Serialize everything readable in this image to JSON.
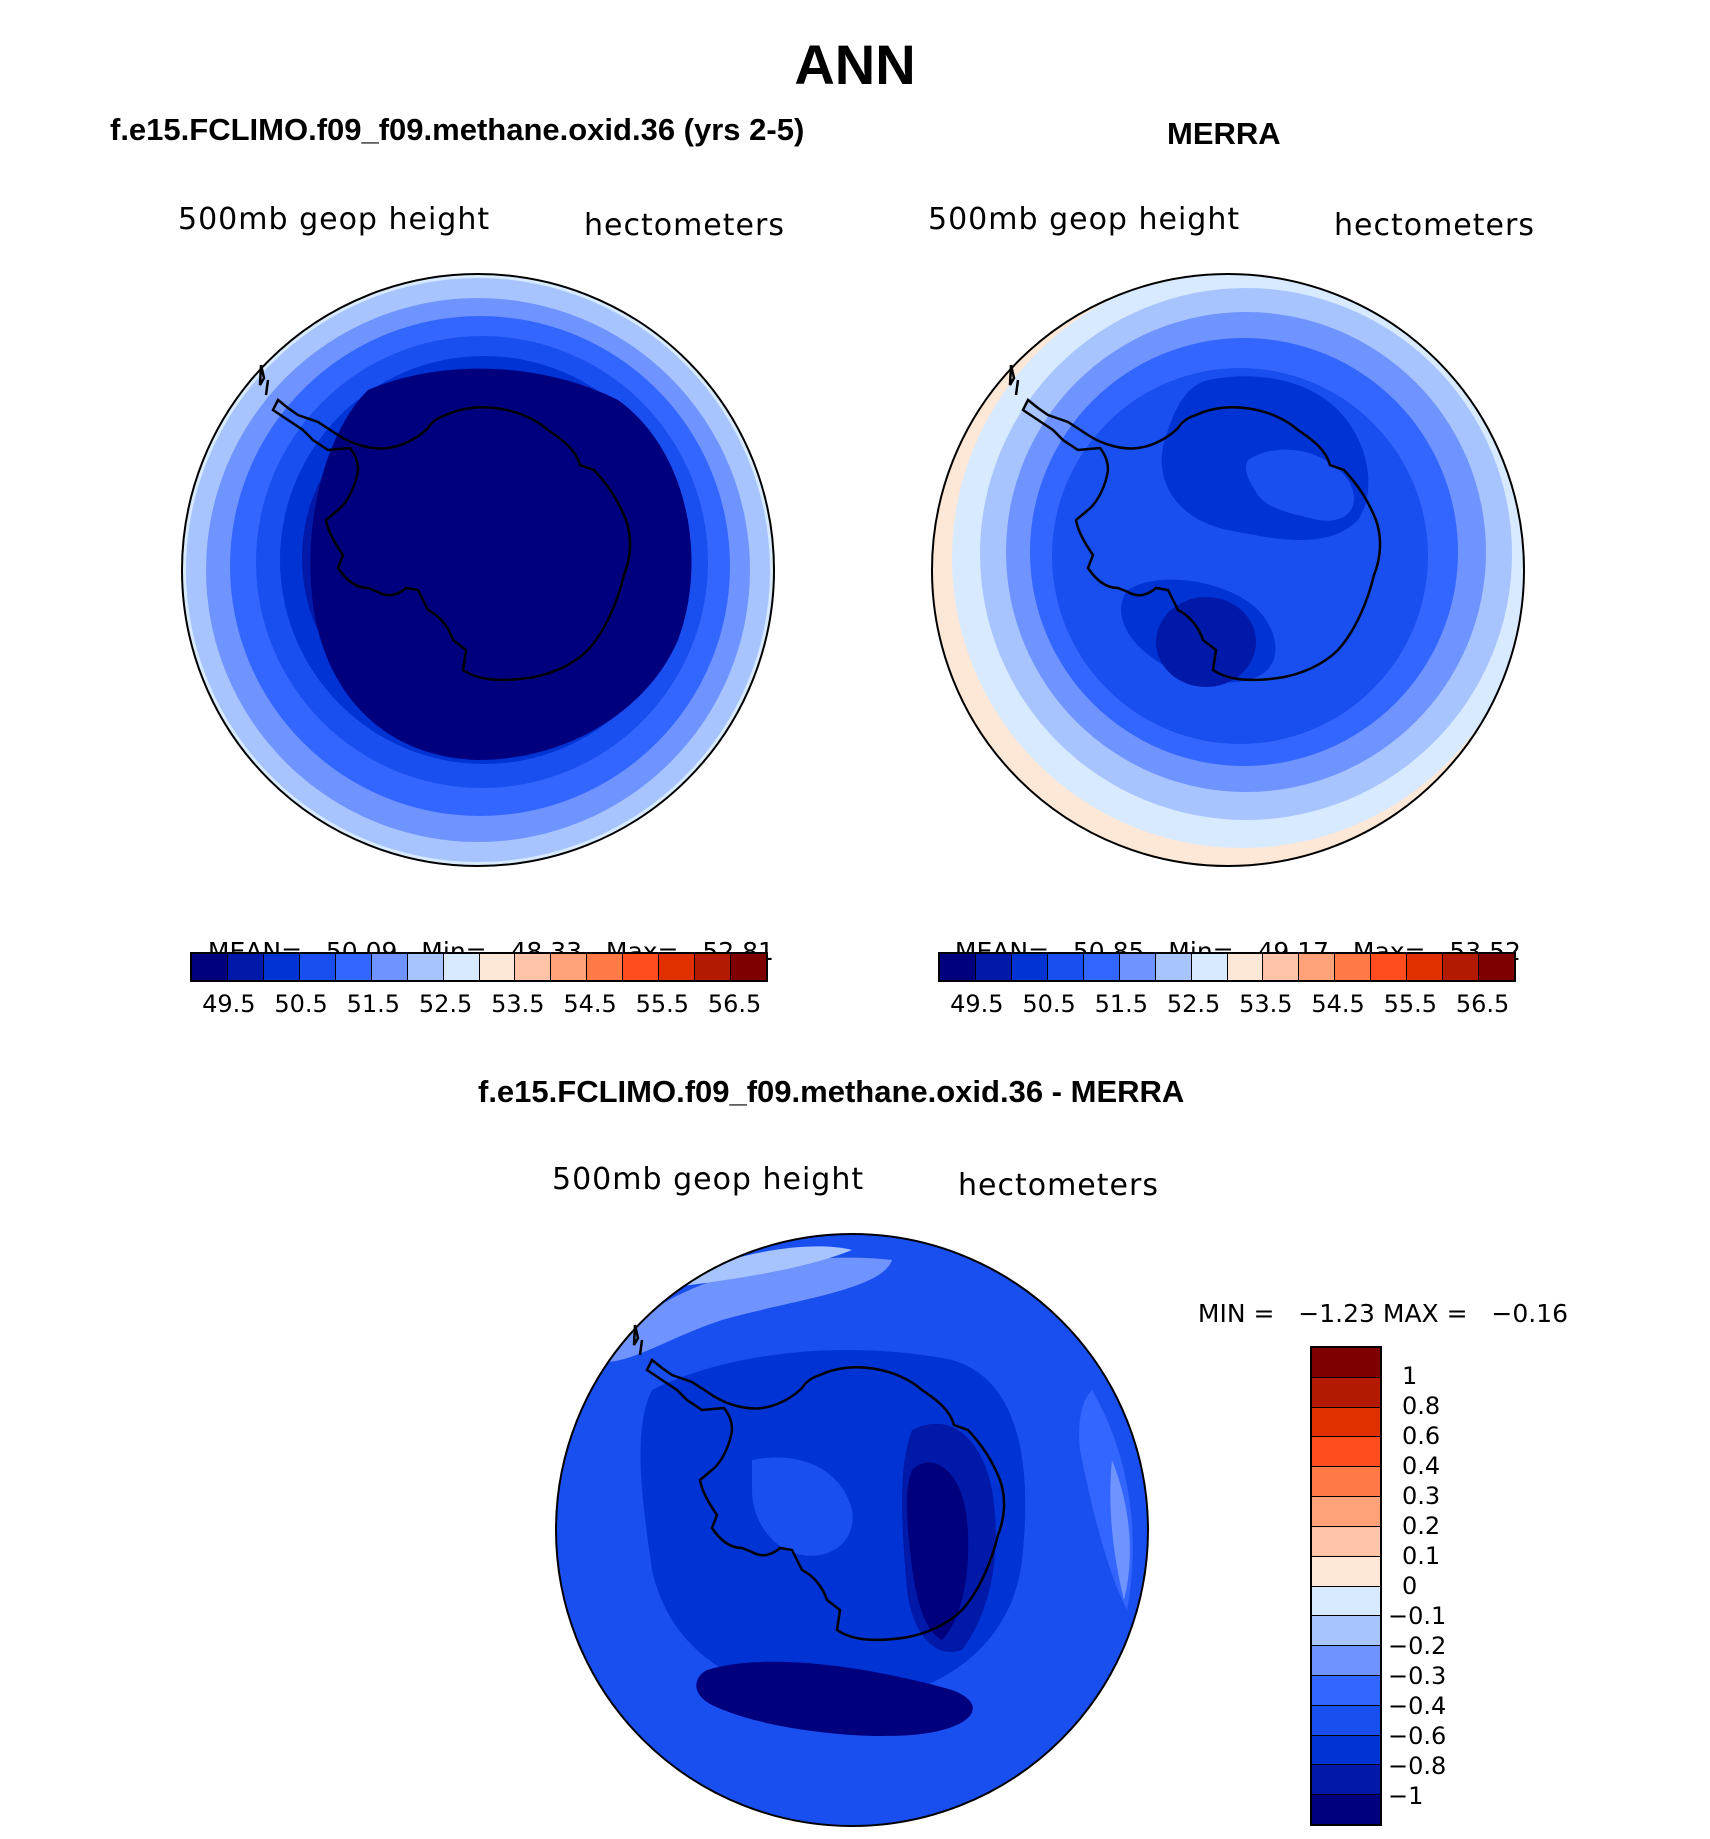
{
  "title": "ANN",
  "panels": [
    {
      "title": "f.e15.FCLIMO.f09_f09.methane.oxid.36 (yrs 2-5)",
      "variable": "500mb  geop  height",
      "units": "hectometers",
      "stats": {
        "mean_label": "MEAN=",
        "mean": "50.09",
        "min_label": "Min=",
        "min": "48.33",
        "max_label": "Max=",
        "max": "52.81"
      }
    },
    {
      "title": "MERRA",
      "variable": "500mb  geop  height",
      "units": "hectometers",
      "stats": {
        "mean_label": "MEAN=",
        "mean": "50.85",
        "min_label": "Min=",
        "min": "49.17",
        "max_label": "Max=",
        "max": "53.52"
      }
    },
    {
      "title": "f.e15.FCLIMO.f09_f09.methane.oxid.36 - MERRA",
      "variable": "500mb  geop  height",
      "units": "hectometers",
      "stats": {
        "min_label": "MIN =",
        "min": "−1.23",
        "max_label": "MAX =",
        "max": "−0.16"
      }
    }
  ],
  "abs_colorbar": {
    "colors": [
      "#00007f",
      "#0019a8",
      "#0033d4",
      "#1a4fef",
      "#3366ff",
      "#6f94ff",
      "#a8c4ff",
      "#d8eaff",
      "#fde8d8",
      "#ffc4a8",
      "#ffa27a",
      "#ff7a47",
      "#ff4d1f",
      "#e03000",
      "#b31a00",
      "#7f0000"
    ],
    "labels": [
      "49.5",
      "50.5",
      "51.5",
      "52.5",
      "53.5",
      "54.5",
      "55.5",
      "56.5"
    ]
  },
  "diff_colorbar": {
    "colors_top_to_bottom": [
      "#7f0000",
      "#b31a00",
      "#e03000",
      "#ff4d1f",
      "#ff7a47",
      "#ffa27a",
      "#ffc4a8",
      "#fde8d8",
      "#d8eaff",
      "#a8c4ff",
      "#6f94ff",
      "#3366ff",
      "#1a4fef",
      "#0033d4",
      "#0019a8",
      "#00007f"
    ],
    "labels": [
      "1",
      "0.8",
      "0.6",
      "0.4",
      "0.3",
      "0.2",
      "0.1",
      "0",
      "−0.1",
      "−0.2",
      "−0.3",
      "−0.4",
      "−0.6",
      "−0.8",
      "−1"
    ]
  },
  "colors": {
    "land_outline": "#000000",
    "background": "#ffffff"
  }
}
